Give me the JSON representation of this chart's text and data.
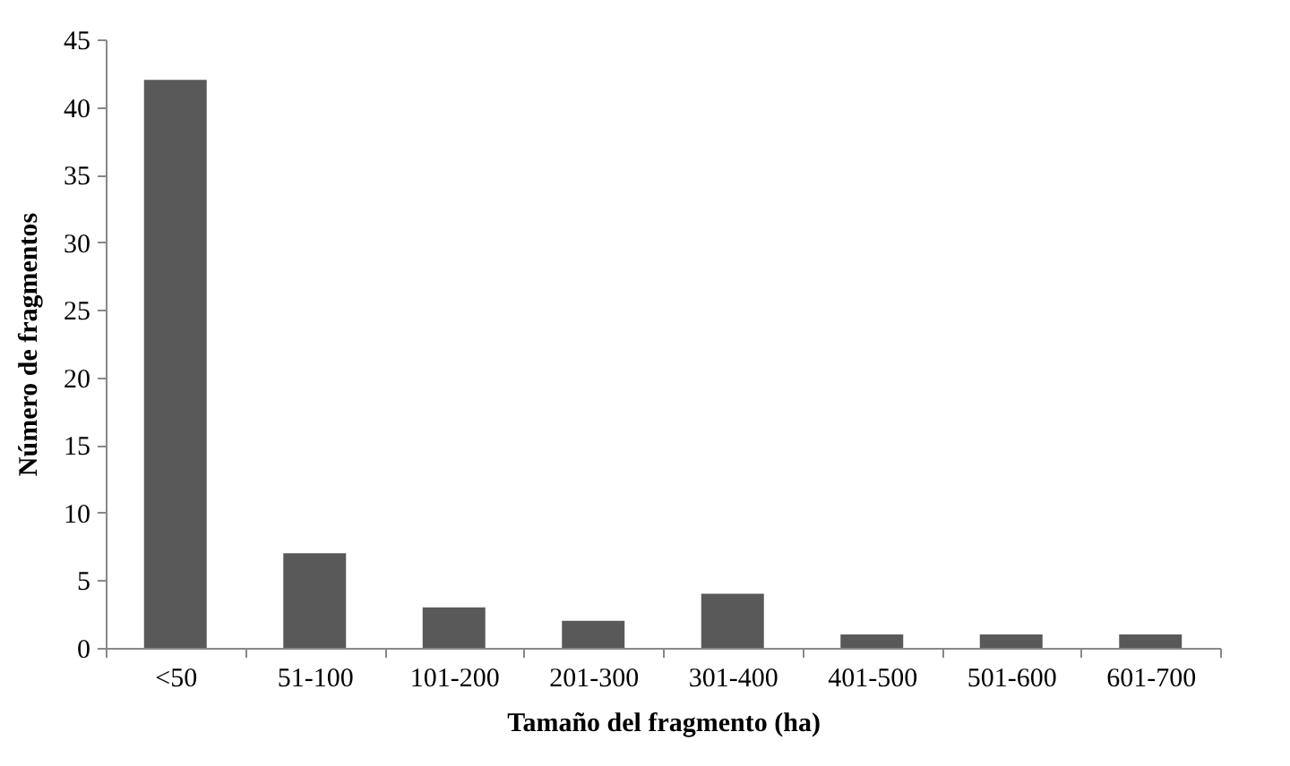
{
  "chart_data": {
    "type": "bar",
    "xlabel": "Tamaño del fragmento (ha)",
    "ylabel": "Número de fragmentos",
    "categories": [
      "<50",
      "51-100",
      "101-200",
      "201-300",
      "301-400",
      "401-500",
      "501-600",
      "601-700"
    ],
    "values": [
      42,
      7,
      3,
      2,
      4,
      1,
      1,
      1
    ],
    "color": "#595959",
    "ylim": [
      0,
      45
    ],
    "yticks": [
      0,
      5,
      10,
      15,
      20,
      25,
      30,
      35,
      40,
      45
    ],
    "grid": false
  }
}
